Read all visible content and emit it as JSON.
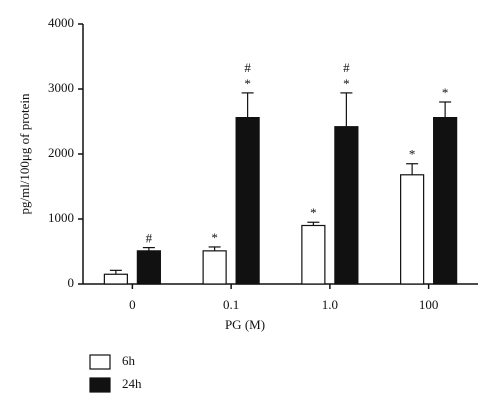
{
  "chart_data": {
    "type": "bar",
    "xlabel": "PG (M)",
    "ylabel": "pg/ml/100μg of protein",
    "categories": [
      "0",
      "0.1",
      "1.0",
      "100"
    ],
    "series": [
      {
        "name": "6h",
        "color": "#ffffff",
        "values": [
          150,
          510,
          900,
          1680
        ],
        "errors": [
          60,
          60,
          50,
          170
        ],
        "annotations": [
          [],
          [
            "*"
          ],
          [
            "*"
          ],
          [
            "*"
          ]
        ]
      },
      {
        "name": "24h",
        "color": "#111111",
        "values": [
          510,
          2560,
          2420,
          2560
        ],
        "errors": [
          50,
          380,
          520,
          240
        ],
        "annotations": [
          [
            "#"
          ],
          [
            "*",
            "#"
          ],
          [
            "*",
            "#"
          ],
          [
            "*"
          ]
        ]
      }
    ],
    "ylim": [
      0,
      4000
    ],
    "yticks": [
      0,
      1000,
      2000,
      3000,
      4000
    ],
    "legend": "bottom-left"
  }
}
